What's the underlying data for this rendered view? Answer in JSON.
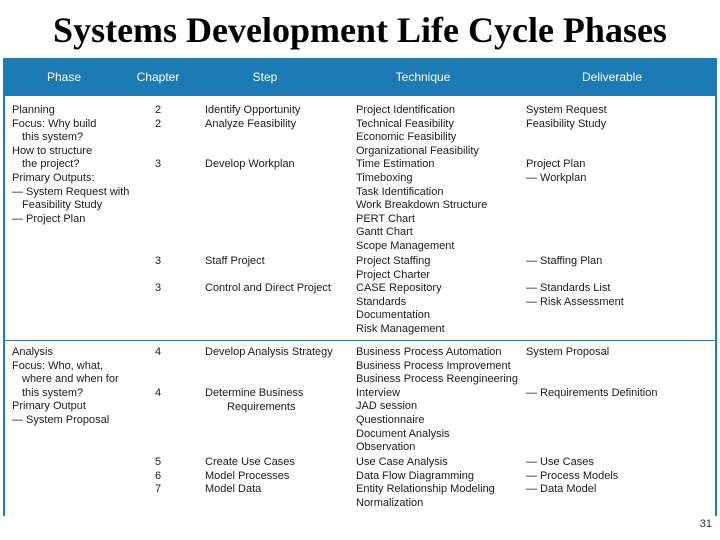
{
  "title": "Systems Development Life Cycle Phases",
  "page_number": "31",
  "table": {
    "headers": {
      "phase": "Phase",
      "chapter": "Chapter",
      "step": "Step",
      "technique": "Technique",
      "deliverable": "Deliverable"
    },
    "phase_lines": [
      "Planning",
      "Focus: Why build",
      "this system?",
      "How to structure",
      "the project?",
      "Primary Outputs:",
      "— System Request with",
      "Feasibility Study",
      "— Project Plan",
      "Analysis",
      "Focus: Who, what,",
      "where and when for",
      "this system?",
      "Primary Output",
      "— System Proposal"
    ],
    "chapter_lines": [
      "2",
      "2",
      "3",
      "3",
      "3",
      "4",
      "4",
      "5",
      "6",
      "7"
    ],
    "step_lines": [
      "Identify Opportunity",
      "Analyze Feasibility",
      "Develop Workplan",
      "Staff Project",
      "Control and Direct Project",
      "Develop Analysis Strategy",
      "Determine Business",
      "Requirements",
      "Create Use Cases",
      "Model Processes",
      "Model Data"
    ],
    "technique_lines": [
      "Project Identification",
      "Technical Feasibility",
      "Economic Feasibility",
      "Organizational Feasibility",
      "Time Estimation",
      "Timeboxing",
      "Task Identification",
      "Work Breakdown Structure",
      "PERT Chart",
      "Gantt Chart",
      "Scope Management",
      "Project Staffing",
      "Project Charter",
      "CASE Repository",
      "Standards",
      "Documentation",
      "Risk Management",
      "Business Process Automation",
      "Business Process Improvement",
      "Business Process Reengineering",
      "Interview",
      "JAD session",
      "Questionnaire",
      "Document Analysis",
      "Observation",
      "Use Case Analysis",
      "Data Flow Diagramming",
      "Entity Relationship Modeling",
      "Normalization"
    ],
    "deliverable_lines": [
      "System Request",
      "Feasibility Study",
      "Project Plan",
      "— Workplan",
      "— Staffing Plan",
      "— Standards List",
      "— Risk Assessment",
      "System Proposal",
      "— Requirements Definition",
      "— Use Cases",
      "— Process Models",
      "— Data Model"
    ]
  }
}
